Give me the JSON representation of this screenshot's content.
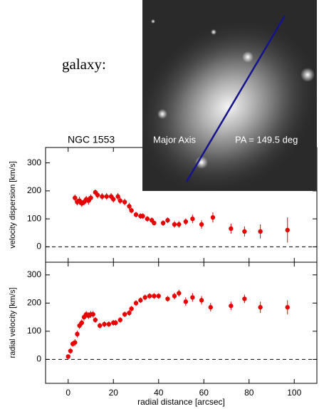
{
  "intro_text": "galaxy:",
  "image": {
    "labels": [
      "Major Axis",
      "PA = 149.5 deg"
    ]
  },
  "chart_data": [
    {
      "type": "scatter",
      "title": "NGC  1553",
      "ylabel": "velocity dispersion [km/s]",
      "color": "#e60000",
      "ylim": [
        -55,
        355
      ],
      "yticks": [
        0,
        100,
        200,
        300
      ],
      "hline": 0,
      "x": [
        3,
        4,
        5,
        6,
        7,
        8,
        9,
        10,
        12,
        13,
        15,
        17,
        19,
        20,
        22,
        23,
        25,
        27,
        28,
        30,
        32,
        33,
        35,
        37,
        38,
        42,
        44,
        47,
        49,
        52,
        55,
        59,
        64,
        72,
        78,
        85,
        97
      ],
      "values": [
        175,
        160,
        165,
        155,
        160,
        170,
        165,
        175,
        195,
        185,
        180,
        180,
        180,
        170,
        180,
        165,
        160,
        145,
        130,
        115,
        110,
        110,
        100,
        95,
        85,
        85,
        95,
        80,
        80,
        90,
        100,
        80,
        105,
        65,
        55,
        55,
        60
      ],
      "errors": [
        12,
        12,
        14,
        12,
        12,
        12,
        14,
        12,
        10,
        12,
        12,
        12,
        12,
        12,
        12,
        12,
        12,
        12,
        10,
        10,
        10,
        10,
        10,
        10,
        8,
        10,
        10,
        12,
        12,
        12,
        15,
        15,
        18,
        18,
        18,
        25,
        45
      ]
    },
    {
      "type": "scatter",
      "ylabel": "radial velocity [km/s]",
      "xlabel": "radial distance [arcsec]",
      "color": "#e60000",
      "ylim": [
        -85,
        345
      ],
      "yticks": [
        0,
        100,
        200,
        300
      ],
      "hline": 0,
      "xlim": [
        -10,
        110
      ],
      "xticks": [
        0,
        20,
        40,
        60,
        80,
        100
      ],
      "x": [
        0,
        1,
        2,
        3,
        4,
        5,
        6,
        7,
        8,
        9,
        10,
        11,
        12,
        14,
        16,
        18,
        20,
        21,
        23,
        25,
        27,
        28,
        30,
        32,
        34,
        36,
        38,
        40,
        44,
        47,
        49,
        52,
        55,
        59,
        63,
        72,
        78,
        85,
        97
      ],
      "values": [
        10,
        30,
        55,
        60,
        90,
        120,
        130,
        150,
        160,
        155,
        160,
        160,
        140,
        120,
        125,
        125,
        130,
        130,
        140,
        160,
        165,
        180,
        200,
        210,
        220,
        225,
        225,
        225,
        215,
        225,
        235,
        205,
        220,
        210,
        185,
        190,
        215,
        185,
        185
      ],
      "errors": [
        8,
        10,
        10,
        12,
        12,
        12,
        12,
        12,
        12,
        12,
        12,
        12,
        10,
        10,
        10,
        10,
        10,
        10,
        10,
        10,
        10,
        10,
        10,
        10,
        10,
        10,
        10,
        10,
        10,
        12,
        12,
        15,
        15,
        15,
        15,
        15,
        15,
        20,
        25
      ]
    }
  ]
}
